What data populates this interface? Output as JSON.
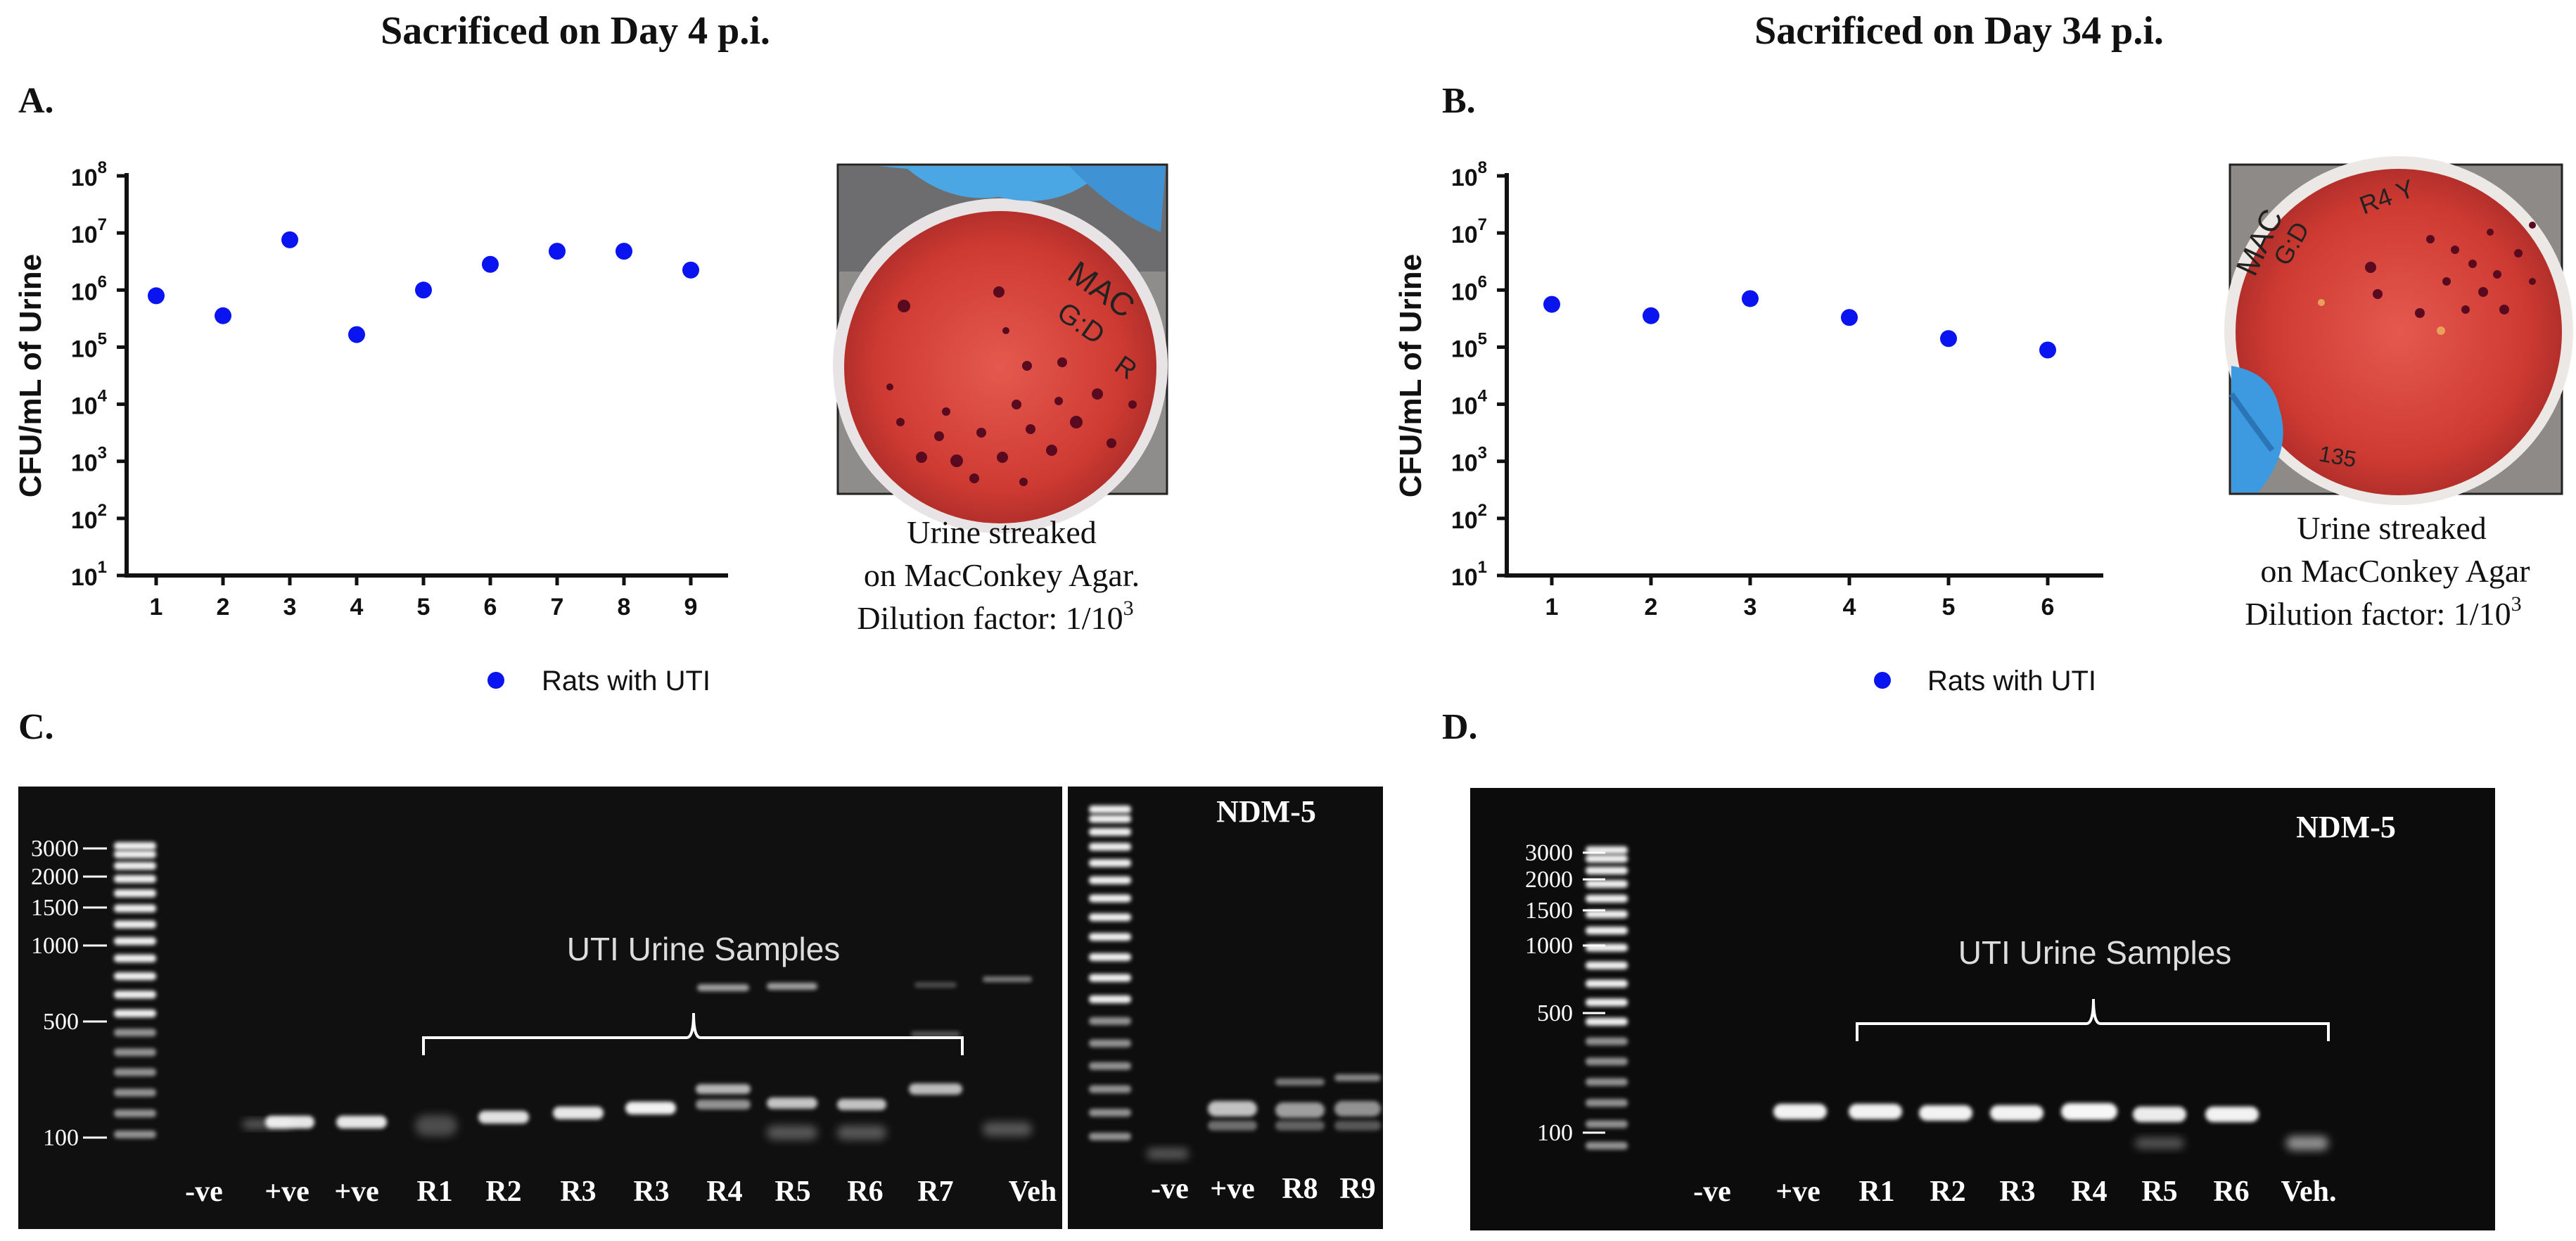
{
  "titles": {
    "left": "Sacrificed on Day 4 p.i.",
    "right": "Sacrificed on Day 34 p.i."
  },
  "panels": {
    "a": "A.",
    "b": "B.",
    "c": "C.",
    "d": "D."
  },
  "colors": {
    "point": "#0a14f0",
    "gel_bg": "#0c0c0c",
    "agar": "#c8362f"
  },
  "chart_data": [
    {
      "type": "scatter",
      "panel": "A",
      "ylabel": "CFU/mL of Urine",
      "yscale": "log",
      "ylim": [
        1,
        8
      ],
      "y_ticks": [
        {
          "base": "10",
          "exp": "8"
        },
        {
          "base": "10",
          "exp": "7"
        },
        {
          "base": "10",
          "exp": "6"
        },
        {
          "base": "10",
          "exp": "5"
        },
        {
          "base": "10",
          "exp": "4"
        },
        {
          "base": "10",
          "exp": "3"
        },
        {
          "base": "10",
          "exp": "2"
        },
        {
          "base": "10",
          "exp": "1"
        }
      ],
      "x": [
        "1",
        "2",
        "3",
        "4",
        "5",
        "6",
        "7",
        "8",
        "9"
      ],
      "series": [
        {
          "name": "Rats with UTI",
          "log10_values": [
            5.9,
            5.55,
            6.88,
            5.22,
            6.0,
            6.45,
            6.68,
            6.68,
            6.35
          ]
        }
      ],
      "legend": "Rats with UTI"
    },
    {
      "type": "scatter",
      "panel": "B",
      "ylabel": "CFU/mL of Urine",
      "yscale": "log",
      "ylim": [
        1,
        8
      ],
      "y_ticks": [
        {
          "base": "10",
          "exp": "8"
        },
        {
          "base": "10",
          "exp": "7"
        },
        {
          "base": "10",
          "exp": "6"
        },
        {
          "base": "10",
          "exp": "5"
        },
        {
          "base": "10",
          "exp": "4"
        },
        {
          "base": "10",
          "exp": "3"
        },
        {
          "base": "10",
          "exp": "2"
        },
        {
          "base": "10",
          "exp": "1"
        }
      ],
      "x": [
        "1",
        "2",
        "3",
        "4",
        "5",
        "6"
      ],
      "series": [
        {
          "name": "Rats with UTI",
          "log10_values": [
            5.75,
            5.55,
            5.85,
            5.52,
            5.15,
            4.95
          ]
        }
      ],
      "legend": "Rats with UTI"
    }
  ],
  "photo_captions": {
    "a": {
      "line1": "Urine streaked",
      "line2": "on MacConkey Agar.",
      "line3_prefix": "Dilution factor: 1/10",
      "line3_exp": "3"
    },
    "b": {
      "line1": "Urine streaked",
      "line2": "on MacConkey Agar",
      "line3_prefix": "Dilution factor: 1/10",
      "line3_exp": "3"
    }
  },
  "plate_labels": {
    "a": {
      "line1": "MAC",
      "line2": "G:D",
      "line3": "R"
    },
    "b": {
      "line1": "MAC",
      "line2": "G:D",
      "line3": "R4 Y",
      "line4": "135"
    }
  },
  "gel_c": {
    "ladder": [
      "3000",
      "2000",
      "1500",
      "1000",
      "500",
      "100"
    ],
    "annotation": "UTI Urine Samples",
    "lanes": [
      "-ve",
      "+ve",
      "+ve",
      "R1",
      "R2",
      "R3",
      "R3",
      "R4",
      "R5",
      "R6",
      "R7",
      "Veh"
    ],
    "inset_label": "NDM-5",
    "inset_lanes": [
      "-ve",
      "+ve",
      "R8",
      "R9"
    ]
  },
  "gel_d": {
    "ladder": [
      "3000",
      "2000",
      "1500",
      "1000",
      "500",
      "100"
    ],
    "label": "NDM-5",
    "annotation": "UTI Urine Samples",
    "lanes": [
      "-ve",
      "+ve",
      "R1",
      "R2",
      "R3",
      "R4",
      "R5",
      "R6",
      "Veh."
    ]
  }
}
